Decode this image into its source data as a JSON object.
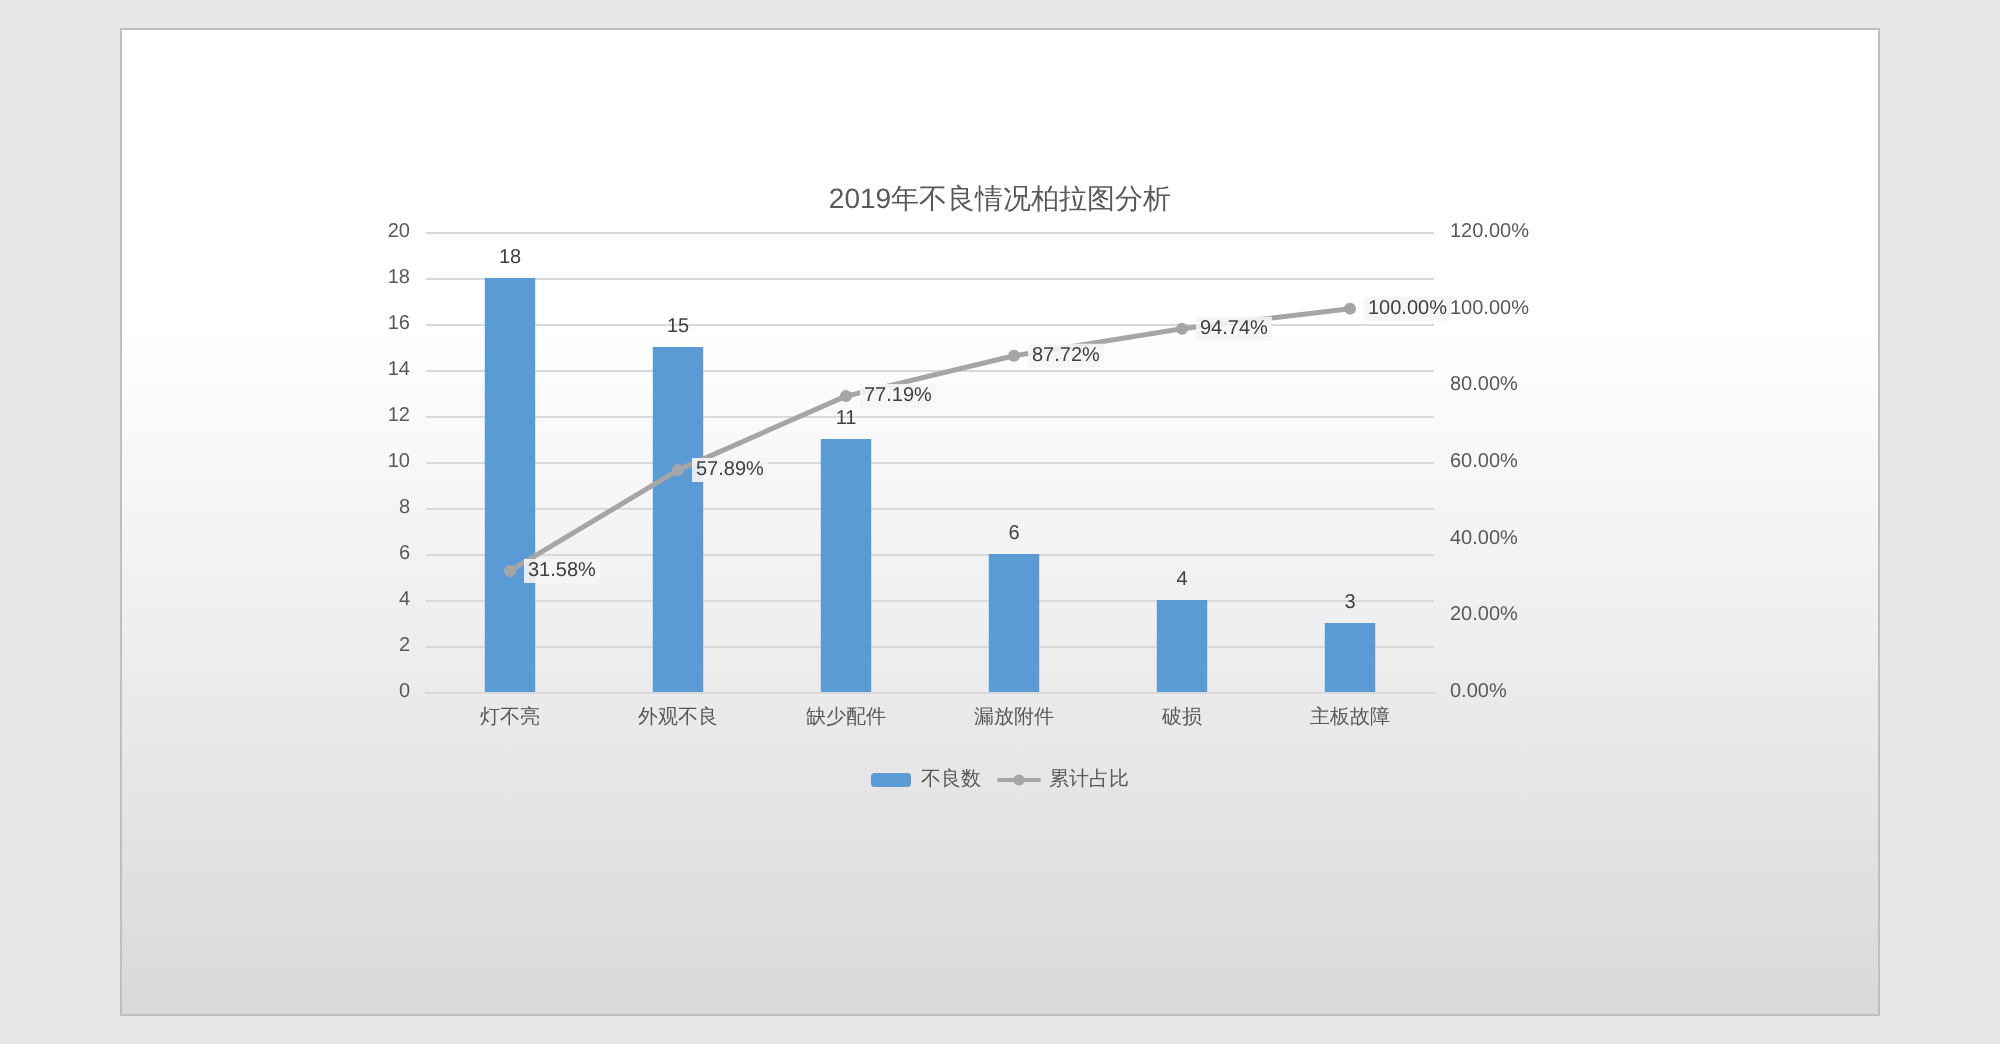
{
  "chart_data": {
    "type": "bar",
    "title": "2019年不良情况柏拉图分析",
    "categories": [
      "灯不亮",
      "外观不良",
      "缺少配件",
      "漏放附件",
      "破损",
      "主板故障"
    ],
    "series": [
      {
        "name": "不良数",
        "color": "#5b9bd5",
        "values": [
          18,
          15,
          11,
          6,
          4,
          3
        ],
        "value_labels": [
          "18",
          "15",
          "11",
          "6",
          "4",
          "3"
        ]
      },
      {
        "name": "累计占比",
        "type": "line",
        "axis": "y2",
        "color": "#a5a5a5",
        "values": [
          31.58,
          57.89,
          77.19,
          87.72,
          94.74,
          100
        ],
        "value_labels": [
          "31.58%",
          "57.89%",
          "77.19%",
          "87.72%",
          "94.74%",
          "100.00%"
        ]
      }
    ],
    "ylim": [
      0,
      20
    ],
    "yticks": [
      0,
      2,
      4,
      6,
      8,
      10,
      12,
      14,
      16,
      18,
      20
    ],
    "y2lim": [
      0,
      120
    ],
    "y2ticks": [
      {
        "value": 0,
        "label": "0.00%"
      },
      {
        "value": 20,
        "label": "20.00%"
      },
      {
        "value": 40,
        "label": "40.00%"
      },
      {
        "value": 60,
        "label": "60.00%"
      },
      {
        "value": 80,
        "label": "80.00%"
      },
      {
        "value": 100,
        "label": "100.00%"
      },
      {
        "value": 120,
        "label": "120.00%"
      }
    ],
    "grid": "y",
    "legend": "bottom",
    "marker": "circle",
    "line_style": "solid"
  }
}
